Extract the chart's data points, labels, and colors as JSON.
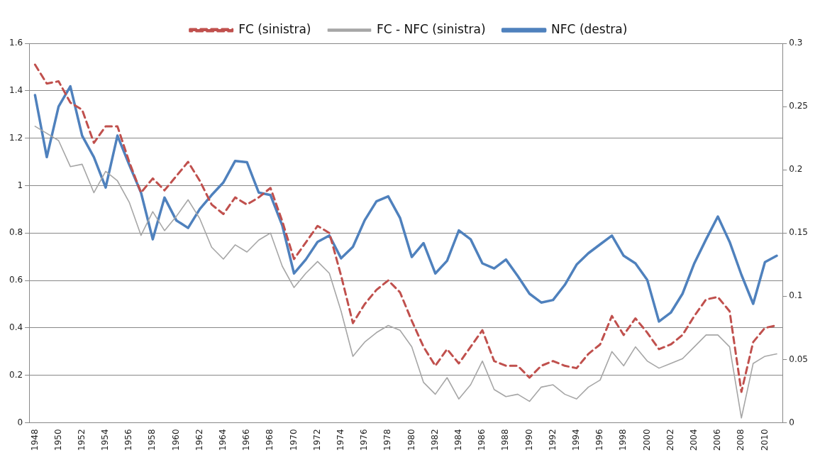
{
  "chart_data": {
    "type": "line",
    "categories": [
      "1948",
      null,
      "1950",
      null,
      "1952",
      null,
      "1954",
      null,
      "1956",
      null,
      "1958",
      null,
      "1960",
      null,
      "1962",
      null,
      "1964",
      null,
      "1966",
      null,
      "1968",
      null,
      "1970",
      null,
      "1972",
      null,
      "1974",
      null,
      "1976",
      null,
      "1978",
      null,
      "1980",
      null,
      "1982",
      null,
      "1984",
      null,
      "1986",
      null,
      "1988",
      null,
      "1990",
      null,
      "1992",
      null,
      "1994",
      null,
      "1996",
      null,
      "1998",
      null,
      "2000",
      null,
      "2002",
      null,
      "2004",
      null,
      "2006",
      null,
      "2008",
      null,
      "2010",
      null
    ],
    "series": [
      {
        "name": "FC (sinistra)",
        "color": "#c0504d",
        "line_style": "dashed",
        "values": [
          1.51,
          1.43,
          1.44,
          1.35,
          1.32,
          1.18,
          1.25,
          1.25,
          1.1,
          0.97,
          1.03,
          0.98,
          1.04,
          1.1,
          1.02,
          0.92,
          0.88,
          0.95,
          0.92,
          0.95,
          0.99,
          0.85,
          0.69,
          0.76,
          0.83,
          0.8,
          0.62,
          0.42,
          0.5,
          0.56,
          0.6,
          0.55,
          0.43,
          0.32,
          0.24,
          0.31,
          0.25,
          0.32,
          0.39,
          0.26,
          0.24,
          0.24,
          0.19,
          0.24,
          0.26,
          0.24,
          0.23,
          0.29,
          0.33,
          0.45,
          0.37,
          0.44,
          0.38,
          0.31,
          0.33,
          0.37,
          0.45,
          0.52,
          0.53,
          0.47,
          0.13,
          0.34,
          0.4,
          0.41
        ]
      },
      {
        "name": "FC - NFC (sinistra)",
        "color": "#a6a6a6",
        "line_style": "solid",
        "values": [
          1.25,
          1.22,
          1.19,
          1.08,
          1.09,
          0.97,
          1.06,
          1.02,
          0.93,
          0.79,
          0.89,
          0.81,
          0.87,
          0.94,
          0.86,
          0.74,
          0.69,
          0.75,
          0.72,
          0.77,
          0.8,
          0.66,
          0.57,
          0.63,
          0.68,
          0.63,
          0.47,
          0.28,
          0.34,
          0.38,
          0.41,
          0.39,
          0.32,
          0.17,
          0.12,
          0.19,
          0.1,
          0.16,
          0.26,
          0.14,
          0.11,
          0.12,
          0.09,
          0.15,
          0.16,
          0.12,
          0.1,
          0.15,
          0.18,
          0.3,
          0.24,
          0.32,
          0.26,
          0.23,
          0.25,
          0.27,
          0.32,
          0.37,
          0.37,
          0.32,
          0.02,
          0.25,
          0.28,
          0.29
        ]
      },
      {
        "name": "NFC (destra)",
        "color": "#4f81bd",
        "line_style": "solid",
        "axis": "y2",
        "values": [
          0.259,
          0.21,
          0.25,
          0.266,
          0.227,
          0.21,
          0.186,
          0.227,
          0.204,
          0.182,
          0.145,
          0.178,
          0.16,
          0.154,
          0.169,
          0.18,
          0.19,
          0.207,
          0.206,
          0.182,
          0.18,
          0.156,
          0.118,
          0.129,
          0.143,
          0.148,
          0.13,
          0.139,
          0.16,
          0.175,
          0.179,
          0.162,
          0.131,
          0.142,
          0.118,
          0.128,
          0.152,
          0.145,
          0.126,
          0.122,
          0.129,
          0.116,
          0.102,
          0.095,
          0.097,
          0.109,
          0.125,
          0.134,
          0.141,
          0.148,
          0.132,
          0.126,
          0.113,
          0.08,
          0.087,
          0.102,
          0.126,
          0.145,
          0.163,
          0.143,
          0.117,
          0.094,
          0.127,
          0.132
        ]
      }
    ],
    "ylim": [
      0,
      1.6
    ],
    "yticks": [
      0,
      0.2,
      0.4,
      0.6,
      0.8,
      1,
      1.2,
      1.4,
      1.6
    ],
    "y2lim": [
      0,
      0.3
    ],
    "y2ticks": [
      0,
      0.05,
      0.1,
      0.15,
      0.2,
      0.25,
      0.3
    ],
    "grid": "y",
    "legend": "top",
    "marker": "none"
  }
}
